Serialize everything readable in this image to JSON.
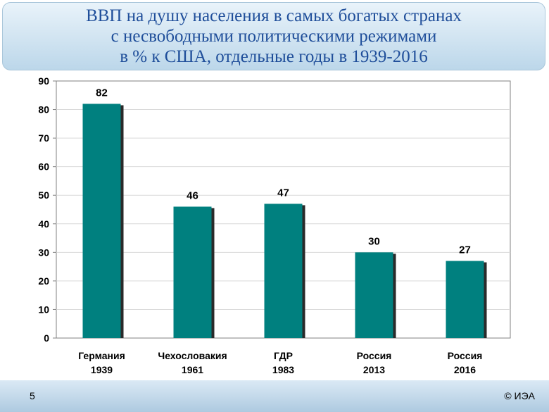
{
  "title": {
    "lines": [
      "ВВП на душу населения в самых богатых странах",
      "с несвободными политическими режимами",
      "в % к США, отдельные годы в 1939-2016"
    ]
  },
  "chart_data": {
    "type": "bar",
    "title": "ВВП на душу населения в самых богатых странах с несвободными политическими режимами в % к США, отдельные годы в 1939-2016",
    "categories": [
      [
        "Германия",
        "1939"
      ],
      [
        "Чехословакия",
        "1961"
      ],
      [
        "ГДР",
        "1983"
      ],
      [
        "Россия",
        "2013"
      ],
      [
        "Россия",
        "2016"
      ]
    ],
    "values": [
      82,
      46,
      47,
      30,
      27
    ],
    "data_labels": [
      "82",
      "46",
      "47",
      "30",
      "27"
    ],
    "ylim": [
      0,
      90
    ],
    "yticks": [
      0,
      10,
      20,
      30,
      40,
      50,
      60,
      70,
      80,
      90
    ],
    "grid": true,
    "colors": {
      "bar": "#00807f",
      "bar_shadow": "#2a2a2a",
      "grid": "#d9d9d9",
      "axis": "#808080"
    }
  },
  "footer": {
    "page_number": "5",
    "copyright": "© ИЭА"
  }
}
